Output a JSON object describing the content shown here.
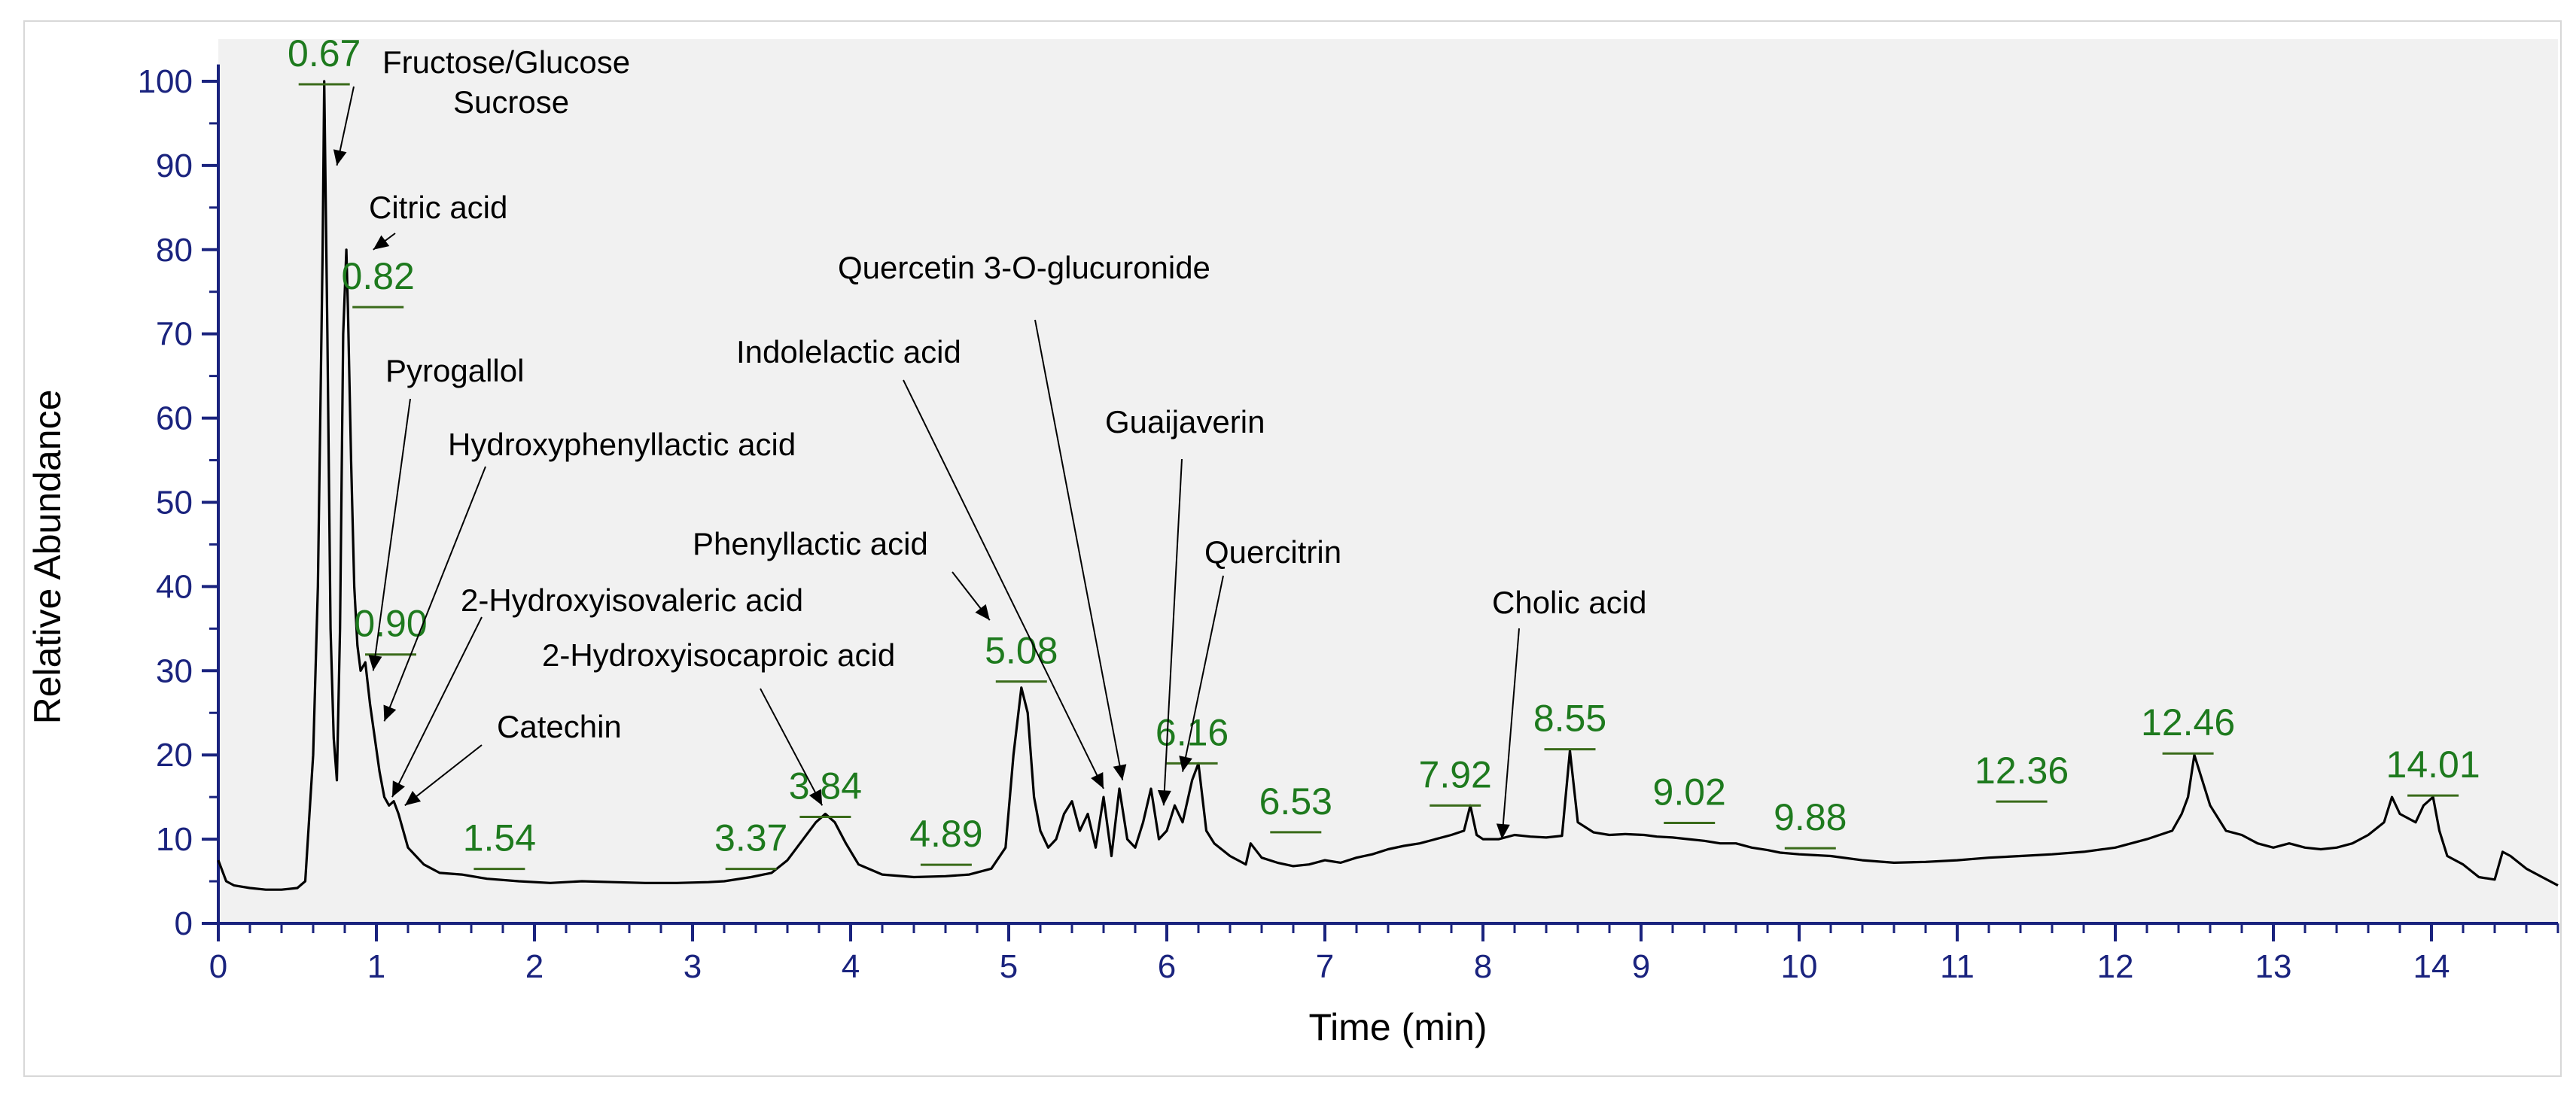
{
  "chart_data": {
    "type": "line",
    "xlabel": "Time (min)",
    "ylabel": "Relative Abundance",
    "xlim": [
      0,
      14.8
    ],
    "ylim": [
      0,
      105
    ],
    "x_ticks": [
      "0",
      "1",
      "2",
      "3",
      "4",
      "5",
      "6",
      "7",
      "8",
      "9",
      "10",
      "11",
      "12",
      "13",
      "14"
    ],
    "y_ticks": [
      "0",
      "10",
      "20",
      "30",
      "40",
      "50",
      "60",
      "70",
      "80",
      "90",
      "100"
    ],
    "grid": false,
    "colors": {
      "trace": "#000000",
      "peak_label": "#1e7a1e",
      "axis": "#1a237e",
      "annotation": "#000000"
    },
    "series": [
      {
        "x": [
          0.0,
          0.05,
          0.1,
          0.2,
          0.3,
          0.4,
          0.5,
          0.55,
          0.6,
          0.63,
          0.66,
          0.67,
          0.69,
          0.71,
          0.73,
          0.75,
          0.77,
          0.79,
          0.81,
          0.82,
          0.84,
          0.86,
          0.88,
          0.9,
          0.93,
          0.96,
          0.99,
          1.02,
          1.05,
          1.08,
          1.11,
          1.14,
          1.17,
          1.2,
          1.3,
          1.4,
          1.54,
          1.7,
          1.9,
          2.1,
          2.3,
          2.5,
          2.7,
          2.9,
          3.1,
          3.2,
          3.37,
          3.5,
          3.6,
          3.7,
          3.78,
          3.84,
          3.9,
          3.97,
          4.05,
          4.2,
          4.4,
          4.6,
          4.75,
          4.89,
          4.98,
          5.03,
          5.08,
          5.12,
          5.16,
          5.2,
          5.25,
          5.3,
          5.35,
          5.4,
          5.45,
          5.5,
          5.55,
          5.6,
          5.65,
          5.7,
          5.75,
          5.8,
          5.85,
          5.9,
          5.95,
          6.0,
          6.05,
          6.1,
          6.16,
          6.2,
          6.25,
          6.3,
          6.4,
          6.5,
          6.53,
          6.6,
          6.7,
          6.8,
          6.9,
          7.0,
          7.1,
          7.2,
          7.3,
          7.4,
          7.5,
          7.6,
          7.7,
          7.8,
          7.88,
          7.92,
          7.96,
          8.0,
          8.1,
          8.2,
          8.3,
          8.4,
          8.5,
          8.55,
          8.6,
          8.7,
          8.8,
          8.9,
          9.02,
          9.1,
          9.2,
          9.3,
          9.4,
          9.5,
          9.6,
          9.7,
          9.8,
          9.88,
          10.0,
          10.2,
          10.4,
          10.6,
          10.8,
          11.0,
          11.2,
          11.4,
          11.6,
          11.8,
          12.0,
          12.2,
          12.36,
          12.42,
          12.46,
          12.5,
          12.6,
          12.7,
          12.8,
          12.9,
          13.0,
          13.1,
          13.2,
          13.3,
          13.4,
          13.5,
          13.6,
          13.7,
          13.75,
          13.8,
          13.9,
          13.95,
          14.01,
          14.05,
          14.1,
          14.2,
          14.3,
          14.4,
          14.45,
          14.5,
          14.6,
          14.7,
          14.8
        ],
        "y": [
          7.5,
          5,
          4.5,
          4.2,
          4.0,
          4.0,
          4.2,
          5,
          20,
          40,
          80,
          100,
          70,
          35,
          22,
          17,
          35,
          70,
          80,
          73,
          55,
          40,
          33,
          30,
          31,
          26,
          22,
          18,
          15,
          14,
          14.5,
          13,
          11,
          9,
          7,
          6,
          5.8,
          5.3,
          5,
          4.8,
          5,
          4.9,
          4.8,
          4.8,
          4.9,
          5,
          5.5,
          6,
          7.5,
          10,
          12,
          13,
          12,
          9.5,
          7,
          5.8,
          5.5,
          5.6,
          5.8,
          6.5,
          9,
          20,
          28,
          25,
          15,
          11,
          9,
          10,
          13,
          14.5,
          11,
          13,
          9,
          15,
          8,
          16,
          10,
          9,
          12,
          16,
          10,
          11,
          14,
          12,
          17,
          19,
          11,
          9.5,
          8,
          7,
          9.5,
          7.8,
          7.2,
          6.8,
          7,
          7.5,
          7.2,
          7.8,
          8.2,
          8.8,
          9.2,
          9.5,
          10,
          10.5,
          11,
          14,
          10.5,
          10,
          10,
          10.5,
          10.3,
          10.2,
          10.4,
          20.5,
          12,
          10.8,
          10.5,
          10.6,
          10.5,
          10.3,
          10.2,
          10,
          9.8,
          9.5,
          9.5,
          9,
          8.7,
          8.4,
          8.2,
          8,
          7.5,
          7.2,
          7.3,
          7.5,
          7.8,
          8,
          8.2,
          8.5,
          9,
          10,
          11,
          13,
          15,
          20,
          14,
          11,
          10.5,
          9.5,
          9,
          9.5,
          9,
          8.8,
          9,
          9.5,
          10.5,
          12,
          15,
          13,
          12,
          14,
          15,
          11,
          8,
          7,
          5.5,
          5.2,
          8.5,
          8,
          6.5,
          5.5,
          4.5
        ]
      }
    ],
    "peak_labels": [
      {
        "text": "0.67",
        "x": 0.67,
        "y": 100
      },
      {
        "text": "0.82",
        "x": 0.82,
        "y": 73
      },
      {
        "text": "0.90",
        "x": 0.9,
        "y": 33
      },
      {
        "text": "1.54",
        "x": 1.54,
        "y": 7
      },
      {
        "text": "3.37",
        "x": 3.37,
        "y": 7
      },
      {
        "text": "3.84",
        "x": 3.84,
        "y": 13
      },
      {
        "text": "4.89",
        "x": 4.89,
        "y": 7.5
      },
      {
        "text": "5.08",
        "x": 5.08,
        "y": 28
      },
      {
        "text": "6.16",
        "x": 6.16,
        "y": 19
      },
      {
        "text": "6.53",
        "x": 6.53,
        "y": 11
      },
      {
        "text": "7.92",
        "x": 7.92,
        "y": 14
      },
      {
        "text": "8.55",
        "x": 8.55,
        "y": 20.5
      },
      {
        "text": "9.02",
        "x": 9.02,
        "y": 13
      },
      {
        "text": "9.88",
        "x": 9.88,
        "y": 10
      },
      {
        "text": "12.36",
        "x": 12.36,
        "y": 15
      },
      {
        "text": "12.46",
        "x": 12.46,
        "y": 20
      },
      {
        "text": "14.01",
        "x": 14.01,
        "y": 15
      }
    ],
    "annotations": [
      {
        "text": "Fructose/Glucose",
        "arrow_to": [
          0.75,
          90
        ]
      },
      {
        "text": "Sucrose",
        "arrow_to": null
      },
      {
        "text": "Citric acid",
        "arrow_to": [
          0.98,
          80
        ]
      },
      {
        "text": "Pyrogallol",
        "arrow_to": [
          0.98,
          30
        ]
      },
      {
        "text": "Hydroxyphenyllactic acid",
        "arrow_to": [
          1.05,
          24
        ]
      },
      {
        "text": "2-Hydroxyisovaleric acid",
        "arrow_to": [
          1.1,
          15
        ]
      },
      {
        "text": "Catechin",
        "arrow_to": [
          1.18,
          14
        ]
      },
      {
        "text": "2-Hydroxyisocaproic acid",
        "arrow_to": [
          3.82,
          14
        ]
      },
      {
        "text": "Phenyllactic acid",
        "arrow_to": [
          4.88,
          36
        ]
      },
      {
        "text": "Indolelactic acid",
        "arrow_to": [
          5.6,
          16
        ]
      },
      {
        "text": "Quercetin 3-O-glucuronide",
        "arrow_to": [
          5.72,
          17
        ]
      },
      {
        "text": "Guaijaverin",
        "arrow_to": [
          5.98,
          14
        ]
      },
      {
        "text": "Quercitrin",
        "arrow_to": [
          6.1,
          18
        ]
      },
      {
        "text": "Cholic acid",
        "arrow_to": [
          8.12,
          10
        ]
      }
    ]
  }
}
